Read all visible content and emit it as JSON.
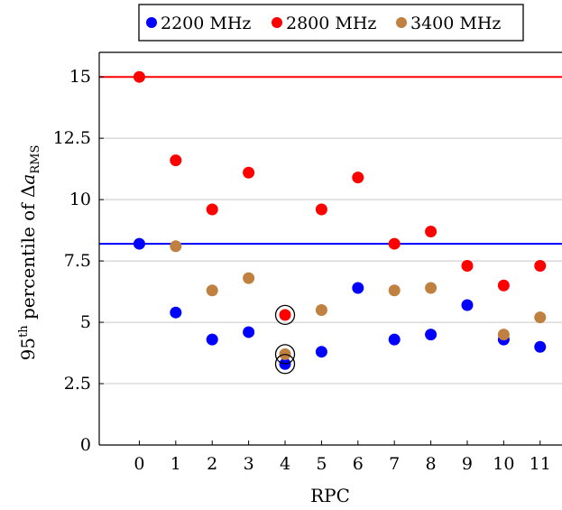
{
  "chart_data": {
    "type": "scatter",
    "xlabel": "RPC",
    "ylabel": {
      "prefix": "95",
      "sup": "th",
      "middle": " percentile of Δ",
      "var": "a",
      "sub": "RMS"
    },
    "x_ticks": [
      0,
      1,
      2,
      3,
      4,
      5,
      6,
      7,
      8,
      9,
      10,
      11
    ],
    "y_ticks": [
      "0",
      "2.5",
      "5",
      "7.5",
      "10",
      "12.5",
      "15"
    ],
    "xlim": [
      -1.1,
      11.6
    ],
    "ylim": [
      0,
      16
    ],
    "grid": "horizontal",
    "legend_position": "top-center",
    "series": [
      {
        "name": "2200 MHz",
        "color": "#0000ff",
        "x": [
          0,
          1,
          2,
          3,
          4,
          5,
          6,
          7,
          8,
          9,
          10,
          11
        ],
        "y": [
          8.2,
          5.4,
          4.3,
          4.6,
          3.3,
          3.8,
          6.4,
          4.3,
          4.5,
          5.7,
          4.3,
          4.0
        ]
      },
      {
        "name": "2800 MHz",
        "color": "#ff0000",
        "x": [
          0,
          1,
          2,
          3,
          4,
          5,
          6,
          7,
          8,
          9,
          10,
          11
        ],
        "y": [
          15.0,
          11.6,
          9.6,
          11.1,
          5.3,
          9.6,
          10.9,
          8.2,
          8.7,
          7.3,
          6.5,
          7.3
        ]
      },
      {
        "name": "3400 MHz",
        "color": "#bf8040",
        "x": [
          1,
          2,
          3,
          4,
          5,
          7,
          8,
          10,
          11
        ],
        "y": [
          8.1,
          6.3,
          6.8,
          3.7,
          5.5,
          6.3,
          6.4,
          4.5,
          5.2
        ]
      }
    ],
    "reference_lines": [
      {
        "y": 15.0,
        "color": "#ff0000"
      },
      {
        "y": 8.2,
        "color": "#0000ff"
      }
    ],
    "highlighted_points": [
      {
        "x": 4,
        "y": 5.3
      },
      {
        "x": 4,
        "y": 3.7
      },
      {
        "x": 4,
        "y": 3.3
      }
    ]
  }
}
